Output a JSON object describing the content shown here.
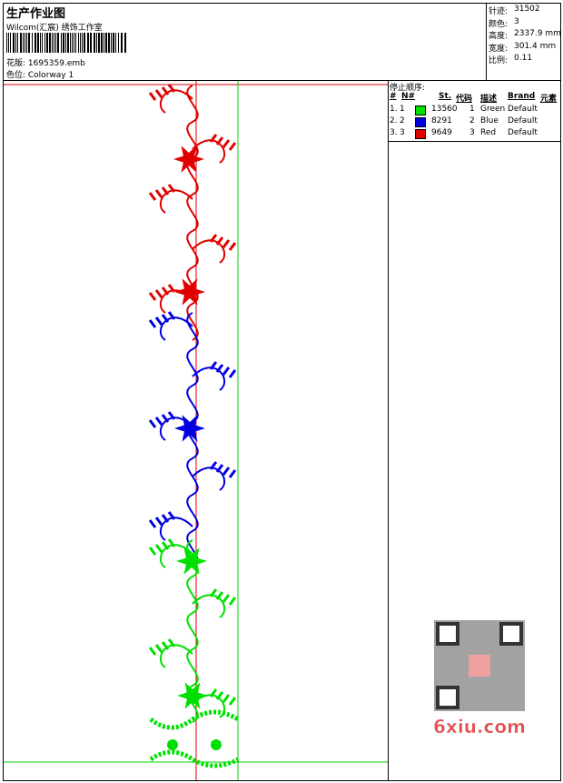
{
  "header": {
    "title": "生产作业图",
    "company": "Wilcom(汇宸) 绣饰工作室",
    "design_file": "花版: 1695359.emb",
    "colorway": "色位: Colorway 1"
  },
  "stats": [
    [
      "针迹:",
      "31502"
    ],
    [
      "颜色:",
      "3"
    ],
    [
      "高度:",
      "2337.9 mm"
    ],
    [
      "宽度:",
      "301.4 mm"
    ],
    [
      "比例:",
      "0.11"
    ]
  ],
  "stop_sequence": {
    "title": "停止顺序:",
    "columns": [
      "#",
      "N#",
      "St.",
      "代码",
      "描述",
      "Brand",
      "元素"
    ],
    "rows": [
      {
        "index": "1.",
        "n": "1",
        "color": "#00e000",
        "stitches": "13560",
        "code": "1",
        "description": "Green",
        "brand": "Default"
      },
      {
        "index": "2.",
        "n": "2",
        "color": "#0000e0",
        "stitches": "8291",
        "code": "2",
        "description": "Blue",
        "brand": "Default"
      },
      {
        "index": "3.",
        "n": "3",
        "color": "#e00000",
        "stitches": "9649",
        "code": "3",
        "description": "Red",
        "brand": "Default"
      }
    ]
  },
  "watermark": "6xiu.com"
}
